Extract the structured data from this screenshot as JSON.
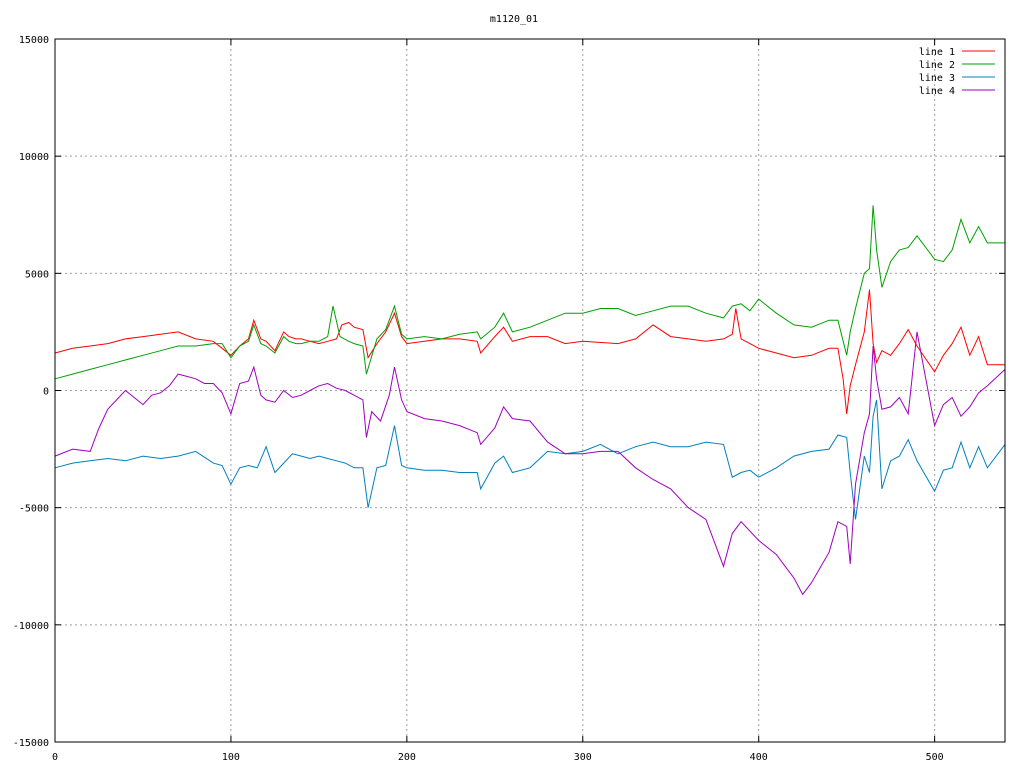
{
  "chart_data": {
    "type": "line",
    "title": "m1120_01",
    "xlim": [
      0,
      540
    ],
    "ylim": [
      -15000,
      15000
    ],
    "xticks": [
      0,
      100,
      200,
      300,
      400,
      500
    ],
    "yticks": [
      -15000,
      -10000,
      -5000,
      0,
      5000,
      10000,
      15000
    ],
    "grid": true,
    "legend_position": "top-right",
    "series": [
      {
        "name": "line 1",
        "color": "#ff0000",
        "x": [
          0,
          10,
          20,
          30,
          40,
          50,
          60,
          70,
          80,
          90,
          95,
          100,
          105,
          110,
          113,
          117,
          120,
          125,
          130,
          133,
          137,
          140,
          145,
          150,
          155,
          160,
          163,
          167,
          170,
          175,
          178,
          183,
          188,
          193,
          197,
          200,
          210,
          220,
          230,
          240,
          242,
          250,
          255,
          260,
          270,
          280,
          290,
          300,
          320,
          330,
          340,
          350,
          360,
          370,
          380,
          385,
          387,
          390,
          395,
          400,
          410,
          420,
          430,
          440,
          445,
          448,
          450,
          452,
          455,
          460,
          463,
          465,
          467,
          470,
          475,
          480,
          485,
          490,
          500,
          505,
          510,
          515,
          520,
          525,
          530,
          540
        ],
        "y": [
          1600,
          1800,
          1900,
          2000,
          2200,
          2300,
          2400,
          2500,
          2200,
          2100,
          1800,
          1500,
          1900,
          2200,
          3000,
          2200,
          2100,
          1700,
          2500,
          2300,
          2200,
          2200,
          2100,
          2000,
          2100,
          2200,
          2800,
          2900,
          2700,
          2600,
          1400,
          2000,
          2500,
          3300,
          2300,
          2000,
          2100,
          2200,
          2200,
          2100,
          1600,
          2300,
          2700,
          2100,
          2300,
          2300,
          2000,
          2100,
          2000,
          2200,
          2800,
          2300,
          2200,
          2100,
          2200,
          2400,
          3500,
          2200,
          2000,
          1800,
          1600,
          1400,
          1500,
          1800,
          1800,
          500,
          -1000,
          200,
          1100,
          2500,
          4300,
          2000,
          1200,
          1700,
          1500,
          2000,
          2600,
          1900,
          800,
          1500,
          2000,
          2700,
          1500,
          2300,
          1100,
          1100
        ]
      },
      {
        "name": "line 2",
        "color": "#00a000",
        "x": [
          0,
          10,
          20,
          30,
          40,
          50,
          60,
          70,
          80,
          90,
          95,
          100,
          105,
          110,
          113,
          117,
          120,
          125,
          130,
          133,
          137,
          140,
          145,
          150,
          155,
          158,
          162,
          167,
          170,
          175,
          177,
          183,
          188,
          193,
          197,
          200,
          210,
          220,
          230,
          240,
          242,
          250,
          255,
          260,
          270,
          280,
          290,
          300,
          310,
          320,
          330,
          340,
          350,
          360,
          370,
          380,
          385,
          390,
          395,
          400,
          410,
          420,
          430,
          440,
          445,
          450,
          452,
          455,
          460,
          463,
          465,
          467,
          470,
          475,
          480,
          485,
          490,
          500,
          505,
          510,
          515,
          520,
          525,
          530,
          540
        ],
        "y": [
          500,
          700,
          900,
          1100,
          1300,
          1500,
          1700,
          1900,
          1900,
          2000,
          2000,
          1400,
          1900,
          2100,
          2800,
          2000,
          1900,
          1600,
          2300,
          2100,
          2000,
          2000,
          2100,
          2100,
          2300,
          3600,
          2300,
          2100,
          2000,
          1900,
          700,
          2200,
          2600,
          3600,
          2400,
          2200,
          2300,
          2200,
          2400,
          2500,
          2200,
          2700,
          3300,
          2500,
          2700,
          3000,
          3300,
          3300,
          3500,
          3500,
          3200,
          3400,
          3600,
          3600,
          3300,
          3100,
          3600,
          3700,
          3400,
          3900,
          3300,
          2800,
          2700,
          3000,
          3000,
          1500,
          2500,
          3500,
          5000,
          5200,
          7900,
          6000,
          4400,
          5500,
          6000,
          6100,
          6600,
          5600,
          5500,
          6000,
          7300,
          6300,
          7000,
          6300,
          6300
        ]
      },
      {
        "name": "line 3",
        "color": "#0080c0",
        "x": [
          0,
          10,
          20,
          30,
          40,
          50,
          60,
          70,
          80,
          90,
          95,
          100,
          105,
          110,
          115,
          120,
          125,
          130,
          135,
          140,
          145,
          150,
          155,
          160,
          165,
          170,
          175,
          178,
          183,
          188,
          193,
          197,
          200,
          210,
          220,
          230,
          240,
          242,
          250,
          255,
          260,
          270,
          280,
          290,
          300,
          310,
          320,
          330,
          340,
          350,
          360,
          370,
          380,
          385,
          390,
          395,
          400,
          410,
          420,
          430,
          440,
          445,
          450,
          452,
          455,
          460,
          463,
          465,
          467,
          470,
          475,
          480,
          485,
          490,
          500,
          505,
          510,
          515,
          520,
          525,
          530,
          540
        ],
        "y": [
          -3300,
          -3100,
          -3000,
          -2900,
          -3000,
          -2800,
          -2900,
          -2800,
          -2600,
          -3100,
          -3200,
          -4000,
          -3300,
          -3200,
          -3300,
          -2400,
          -3500,
          -3100,
          -2700,
          -2800,
          -2900,
          -2800,
          -2900,
          -3000,
          -3100,
          -3300,
          -3300,
          -5000,
          -3300,
          -3200,
          -1500,
          -3200,
          -3300,
          -3400,
          -3400,
          -3500,
          -3500,
          -4200,
          -3100,
          -2800,
          -3500,
          -3300,
          -2600,
          -2700,
          -2600,
          -2300,
          -2700,
          -2400,
          -2200,
          -2400,
          -2400,
          -2200,
          -2300,
          -3700,
          -3500,
          -3400,
          -3700,
          -3300,
          -2800,
          -2600,
          -2500,
          -1900,
          -2000,
          -3500,
          -5500,
          -2800,
          -3500,
          -1100,
          -400,
          -4200,
          -3000,
          -2800,
          -2100,
          -3000,
          -4300,
          -3400,
          -3300,
          -2200,
          -3300,
          -2400,
          -3300,
          -2300
        ]
      },
      {
        "name": "line 4",
        "color": "#a000c0",
        "x": [
          0,
          10,
          20,
          25,
          30,
          35,
          40,
          45,
          50,
          55,
          60,
          65,
          70,
          75,
          80,
          85,
          90,
          95,
          100,
          105,
          110,
          113,
          117,
          120,
          125,
          130,
          135,
          140,
          145,
          150,
          155,
          160,
          165,
          170,
          175,
          177,
          180,
          185,
          190,
          193,
          197,
          200,
          210,
          220,
          230,
          240,
          242,
          250,
          255,
          260,
          270,
          280,
          290,
          300,
          310,
          320,
          330,
          340,
          350,
          360,
          370,
          375,
          380,
          385,
          390,
          400,
          410,
          415,
          420,
          425,
          430,
          440,
          445,
          450,
          452,
          455,
          460,
          463,
          465,
          467,
          470,
          475,
          480,
          485,
          490,
          495,
          500,
          505,
          510,
          515,
          520,
          525,
          530,
          540
        ],
        "y": [
          -2800,
          -2500,
          -2600,
          -1600,
          -800,
          -400,
          0,
          -300,
          -600,
          -200,
          -100,
          200,
          700,
          600,
          500,
          300,
          300,
          -100,
          -1000,
          300,
          400,
          1000,
          -200,
          -400,
          -500,
          0,
          -300,
          -200,
          0,
          200,
          300,
          100,
          0,
          -200,
          -400,
          -2000,
          -900,
          -1300,
          -200,
          1000,
          -400,
          -900,
          -1200,
          -1300,
          -1500,
          -1800,
          -2300,
          -1600,
          -700,
          -1200,
          -1300,
          -2200,
          -2700,
          -2700,
          -2600,
          -2600,
          -3300,
          -3800,
          -4200,
          -5000,
          -5500,
          -6500,
          -7500,
          -6100,
          -5600,
          -6400,
          -7000,
          -7500,
          -8000,
          -8700,
          -8200,
          -6900,
          -5600,
          -5800,
          -7400,
          -4000,
          -1800,
          -1000,
          1900,
          500,
          -800,
          -700,
          -300,
          -1000,
          2500,
          500,
          -1500,
          -600,
          -300,
          -1100,
          -700,
          -100,
          200,
          900
        ]
      }
    ]
  }
}
